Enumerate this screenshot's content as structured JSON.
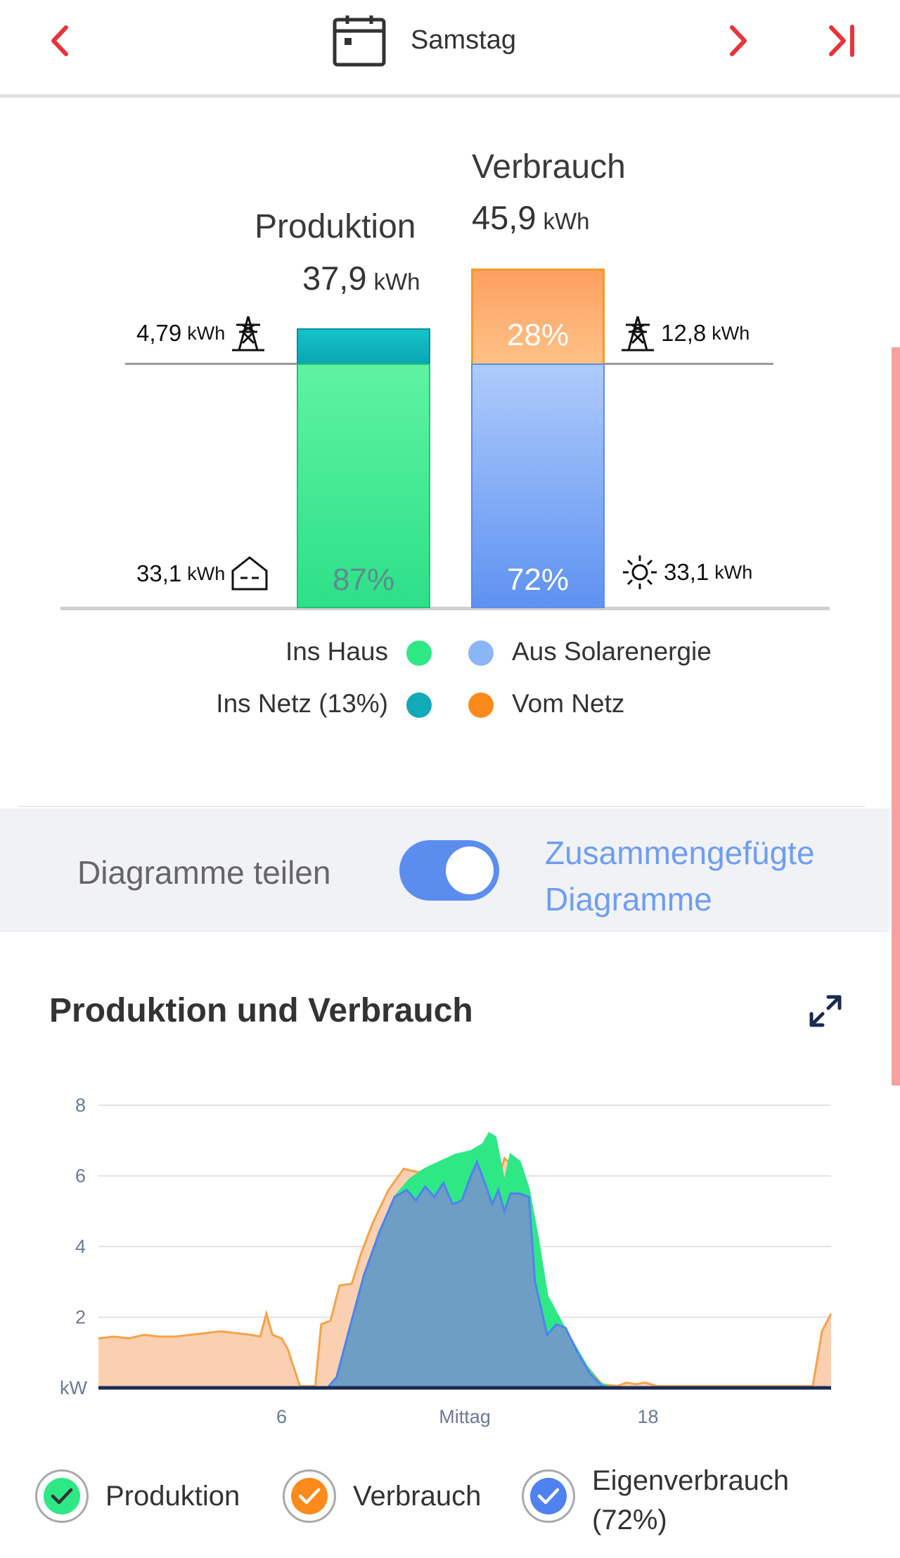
{
  "header": {
    "day_label": "Samstag",
    "prev_icon": "chevron-left-icon",
    "next_icon": "chevron-right-icon",
    "last_icon": "skip-to-end-icon",
    "calendar_icon": "calendar-icon",
    "accent": "#e8343a"
  },
  "summary": {
    "production": {
      "title": "Produktion",
      "value": "37,9",
      "unit": "kWh",
      "to_grid": {
        "value": "4,79",
        "unit": "kWh",
        "icon": "power-pylon-icon"
      },
      "to_house": {
        "value": "33,1",
        "unit": "kWh",
        "icon": "house-icon"
      },
      "house_pct": "87%",
      "grid_pct_value": 13
    },
    "consumption": {
      "title": "Verbrauch",
      "value": "45,9",
      "unit": "kWh",
      "from_grid": {
        "value": "12,8",
        "unit": "kWh",
        "icon": "power-pylon-icon"
      },
      "from_solar": {
        "value": "33,1",
        "unit": "kWh",
        "icon": "sun-icon"
      },
      "grid_pct": "28%",
      "solar_pct": "72%"
    },
    "legend": {
      "ins_haus": "Ins Haus",
      "ins_netz": "Ins Netz (13%)",
      "aus_solar": "Aus Solarenergie",
      "vom_netz": "Vom Netz"
    },
    "colors": {
      "house_green": "#34e58a",
      "grid_teal": "#13b3bd",
      "solar_blue": "#8ab6f7",
      "grid_orange": "#fd8a1a"
    }
  },
  "toggle": {
    "left_label": "Diagramme teilen",
    "right_label_line1": "Zusammengefügte",
    "right_label_line2": "Diagramme",
    "state": "on"
  },
  "chart_section": {
    "title": "Produktion und Verbrauch",
    "expand_icon": "expand-icon"
  },
  "chart_data": {
    "type": "area",
    "title": "Produktion und Verbrauch",
    "ylabel": "kW",
    "xlabel": "",
    "ylim": [
      0,
      8
    ],
    "xlim": [
      0,
      24
    ],
    "y_ticks": [
      2,
      4,
      6,
      8
    ],
    "y_unit_label": "kW",
    "x_ticks": [
      {
        "x": 6,
        "label": "6"
      },
      {
        "x": 12,
        "label": "Mittag"
      },
      {
        "x": 18,
        "label": "18"
      }
    ],
    "series": [
      {
        "name": "Verbrauch",
        "color": "#f6a24a",
        "points": [
          [
            0,
            1.4
          ],
          [
            0.5,
            1.45
          ],
          [
            1,
            1.4
          ],
          [
            1.5,
            1.5
          ],
          [
            2,
            1.45
          ],
          [
            2.5,
            1.45
          ],
          [
            3,
            1.5
          ],
          [
            3.5,
            1.55
          ],
          [
            4,
            1.6
          ],
          [
            4.5,
            1.55
          ],
          [
            5,
            1.5
          ],
          [
            5.3,
            1.45
          ],
          [
            5.5,
            2.1
          ],
          [
            5.7,
            1.5
          ],
          [
            6,
            1.4
          ],
          [
            6.2,
            1.1
          ],
          [
            6.6,
            0.05
          ],
          [
            7.1,
            0.05
          ],
          [
            7.3,
            1.8
          ],
          [
            7.6,
            1.9
          ],
          [
            7.9,
            2.9
          ],
          [
            8.3,
            2.95
          ],
          [
            8.6,
            3.8
          ],
          [
            9,
            4.7
          ],
          [
            9.5,
            5.6
          ],
          [
            10,
            6.2
          ],
          [
            10.5,
            6.1
          ],
          [
            11,
            6.3
          ],
          [
            11.5,
            6.5
          ],
          [
            12,
            6.6
          ],
          [
            12.5,
            6.7
          ],
          [
            12.8,
            6.9
          ],
          [
            13,
            5.6
          ],
          [
            13.3,
            6.5
          ],
          [
            13.7,
            6.2
          ],
          [
            14,
            5.7
          ],
          [
            14.3,
            3.2
          ],
          [
            14.6,
            2.4
          ],
          [
            15,
            1.8
          ],
          [
            15.4,
            1.4
          ],
          [
            15.8,
            0.8
          ],
          [
            16.2,
            0.4
          ],
          [
            16.5,
            0.1
          ],
          [
            17,
            0.05
          ],
          [
            17.3,
            0.15
          ],
          [
            17.6,
            0.1
          ],
          [
            17.9,
            0.15
          ],
          [
            18.3,
            0.05
          ],
          [
            19,
            0.05
          ],
          [
            20,
            0.05
          ],
          [
            21,
            0.05
          ],
          [
            22,
            0.05
          ],
          [
            23.4,
            0.05
          ],
          [
            23.7,
            1.6
          ],
          [
            24,
            2.1
          ]
        ]
      },
      {
        "name": "Produktion",
        "color": "#2ee886",
        "points": [
          [
            0,
            0
          ],
          [
            7.5,
            0
          ],
          [
            7.8,
            0.3
          ],
          [
            8.2,
            1.6
          ],
          [
            8.7,
            3.2
          ],
          [
            9.2,
            4.4
          ],
          [
            9.7,
            5.4
          ],
          [
            10.2,
            5.9
          ],
          [
            10.7,
            6.2
          ],
          [
            11.2,
            6.4
          ],
          [
            11.7,
            6.6
          ],
          [
            12.2,
            6.7
          ],
          [
            12.6,
            6.9
          ],
          [
            12.8,
            7.2
          ],
          [
            13,
            7.1
          ],
          [
            13.3,
            5.8
          ],
          [
            13.5,
            6.6
          ],
          [
            13.8,
            6.4
          ],
          [
            14.1,
            5.6
          ],
          [
            14.4,
            4.2
          ],
          [
            14.7,
            2.6
          ],
          [
            15.2,
            1.8
          ],
          [
            15.6,
            1.2
          ],
          [
            16,
            0.6
          ],
          [
            16.4,
            0.15
          ],
          [
            16.8,
            0
          ],
          [
            24,
            0
          ]
        ]
      },
      {
        "name": "Eigenverbrauch",
        "color": "#6e9ec3",
        "points": [
          [
            0,
            0
          ],
          [
            7.5,
            0
          ],
          [
            7.8,
            0.3
          ],
          [
            8.2,
            1.6
          ],
          [
            8.7,
            3.2
          ],
          [
            9.2,
            4.4
          ],
          [
            9.7,
            5.4
          ],
          [
            10.1,
            5.6
          ],
          [
            10.4,
            5.3
          ],
          [
            10.7,
            5.7
          ],
          [
            11,
            5.4
          ],
          [
            11.3,
            5.8
          ],
          [
            11.6,
            5.2
          ],
          [
            11.9,
            5.3
          ],
          [
            12.2,
            6.0
          ],
          [
            12.4,
            6.4
          ],
          [
            12.7,
            5.7
          ],
          [
            12.9,
            5.2
          ],
          [
            13.1,
            5.6
          ],
          [
            13.3,
            5.0
          ],
          [
            13.5,
            5.5
          ],
          [
            13.8,
            5.5
          ],
          [
            14.1,
            5.4
          ],
          [
            14.3,
            3.0
          ],
          [
            14.7,
            1.5
          ],
          [
            15,
            1.8
          ],
          [
            15.3,
            1.7
          ],
          [
            15.7,
            1.0
          ],
          [
            16.1,
            0.4
          ],
          [
            16.5,
            0.05
          ],
          [
            16.8,
            0
          ],
          [
            24,
            0
          ]
        ]
      }
    ],
    "legend": [
      {
        "label": "Produktion",
        "color": "#2ee886",
        "checked": true
      },
      {
        "label": "Verbrauch",
        "color": "#f6a24a",
        "checked": true
      },
      {
        "label": "Eigenverbrauch",
        "sublabel": "(72%)",
        "color": "#4f82f0",
        "checked": true
      }
    ]
  }
}
